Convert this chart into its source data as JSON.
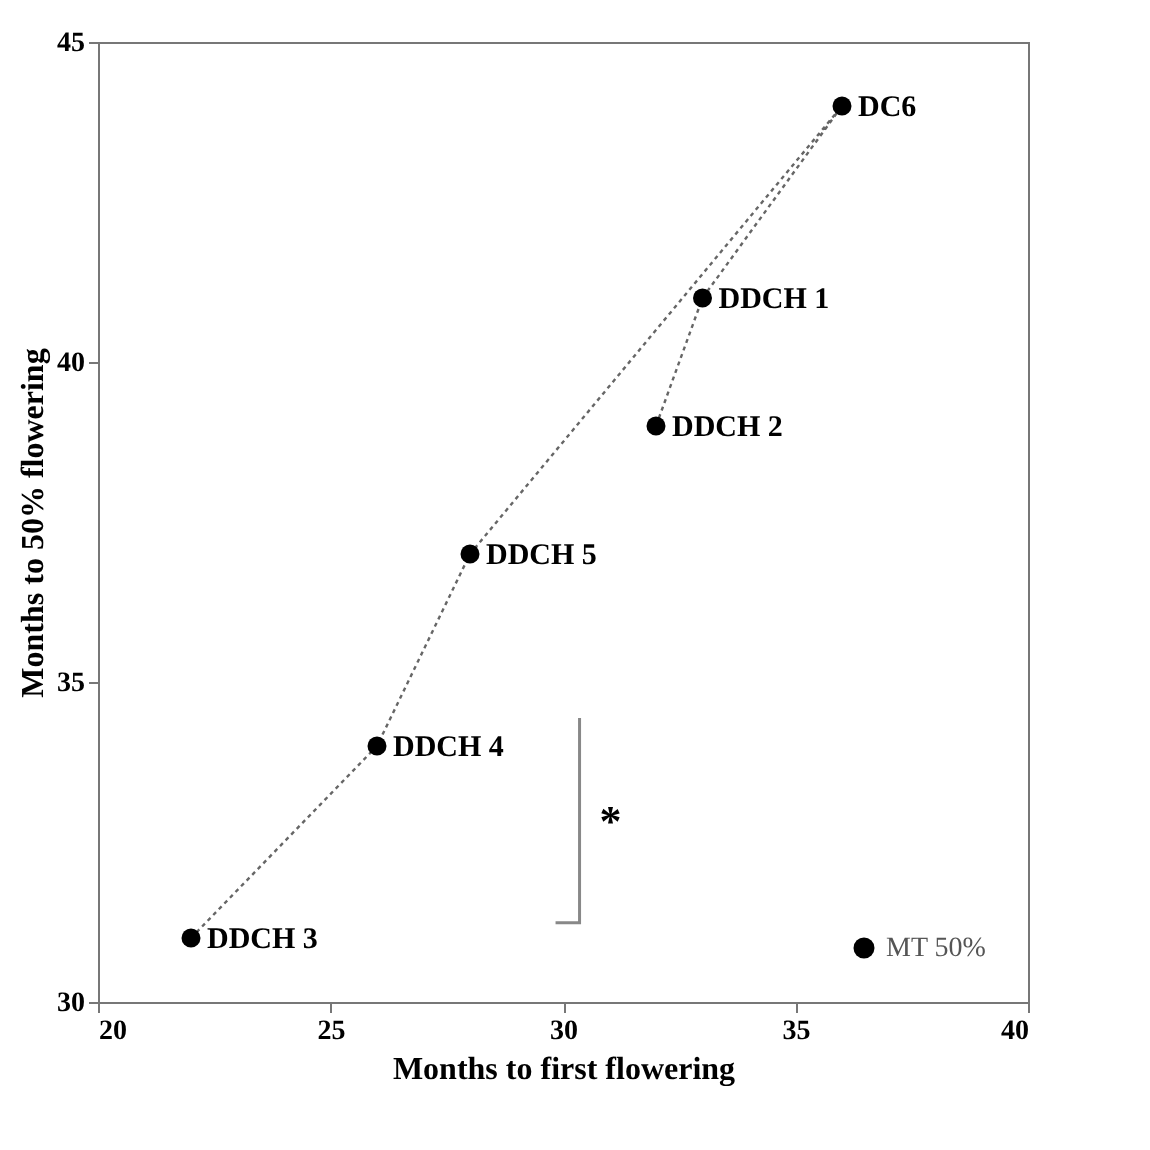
{
  "chart_data": {
    "type": "line",
    "xlabel": "Months to first flowering",
    "ylabel": "Months to 50% flowering",
    "x": [
      22,
      26,
      28,
      36,
      33,
      32
    ],
    "series": [
      {
        "name": "MT 50%",
        "color": "#000000",
        "values": [
          31,
          34,
          37,
          44,
          41,
          39
        ]
      }
    ],
    "annotations": [
      {
        "text": "DDCH 3",
        "x": 22,
        "y": 31
      },
      {
        "text": "DDCH 4",
        "x": 26,
        "y": 34
      },
      {
        "text": "DDCH 5",
        "x": 28,
        "y": 37
      },
      {
        "text": "DC6",
        "x": 36,
        "y": 44
      },
      {
        "text": "DDCH 1",
        "x": 33,
        "y": 41
      },
      {
        "text": "DDCH 2",
        "x": 32,
        "y": 39
      },
      "*"
    ],
    "xlim": [
      20,
      40
    ],
    "xticks": [
      20,
      25,
      30,
      35,
      40
    ],
    "ylim": [
      30,
      45
    ],
    "yticks": [
      30,
      35,
      40,
      45
    ],
    "grid": false,
    "legend": "bottom right",
    "marker": "circle",
    "line_style": "dotted"
  }
}
